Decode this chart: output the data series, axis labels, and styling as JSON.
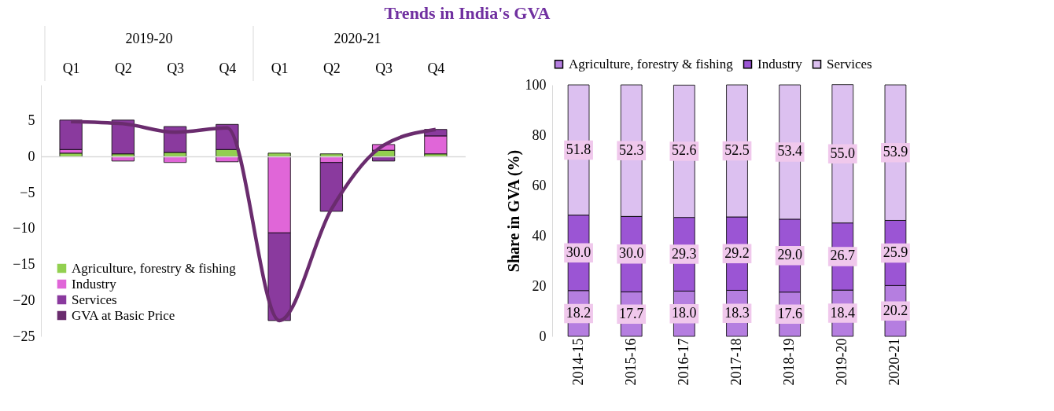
{
  "chart_data": [
    {
      "type": "bar",
      "title": "Trends in India's GVA",
      "categories": [
        "Q1",
        "Q2",
        "Q3",
        "Q4",
        "Q1",
        "Q2",
        "Q3",
        "Q4"
      ],
      "annotations": [
        "2019-20",
        "2020-21"
      ],
      "stacked": true,
      "ref_lines": [
        {
          "axis": "y",
          "value": 0,
          "color": "#d9d9d9"
        }
      ],
      "ylim": [
        -25,
        10
      ],
      "yticks": [
        -25,
        -20,
        -15,
        -10,
        -5,
        0,
        5
      ],
      "grid": false,
      "legend": "bottom left",
      "series": [
        {
          "name": "Agriculture, forestry & fishing",
          "color": "#92d050",
          "values": [
            0.5,
            0.4,
            0.6,
            1.0,
            0.5,
            0.4,
            0.9,
            0.4
          ]
        },
        {
          "name": "Industry",
          "color": "#e066d8",
          "values": [
            0.5,
            -0.6,
            -0.8,
            -0.7,
            -10.6,
            -0.8,
            0.8,
            2.5
          ]
        },
        {
          "name": "Services",
          "color": "#8a3a9e",
          "values": [
            4.1,
            4.7,
            3.6,
            3.5,
            -12.2,
            -6.8,
            -0.6,
            0.9
          ]
        },
        {
          "name": "GVA at Basic Price",
          "type": "line",
          "color": "#6a2c6e",
          "values": [
            4.9,
            4.6,
            3.4,
            4.0,
            -22.8,
            -7.3,
            1.6,
            3.8
          ]
        }
      ]
    },
    {
      "type": "bar",
      "categories": [
        "2014-15",
        "2015-16",
        "2016-17",
        "2017-18",
        "2018-19",
        "2019-20",
        "2020-21"
      ],
      "stacked": true,
      "ylabel": "Share in GVA (%)",
      "ylim": [
        0,
        100
      ],
      "yticks": [
        0,
        20,
        40,
        60,
        80,
        100
      ],
      "grid": false,
      "legend": "top",
      "series": [
        {
          "name": "Agriculture, forestry & fishing",
          "color": "#b57ee0",
          "values": [
            18.2,
            17.7,
            18.0,
            18.3,
            17.6,
            18.4,
            20.2
          ],
          "value_labels": [
            "18.2",
            "17.7",
            "18.0",
            "18.3",
            "17.6",
            "18.4",
            "20.2"
          ]
        },
        {
          "name": "Industry",
          "color": "#9b55d4",
          "values": [
            30.0,
            30.0,
            29.3,
            29.2,
            29.0,
            26.7,
            25.9
          ],
          "value_labels": [
            "30.0",
            "30.0",
            "29.3",
            "29.2",
            "29.0",
            "26.7",
            "25.9"
          ]
        },
        {
          "name": "Services",
          "color": "#dcc0f0",
          "values": [
            51.8,
            52.3,
            52.6,
            52.5,
            53.4,
            55.0,
            53.9
          ],
          "value_labels": [
            "51.8",
            "52.3",
            "52.6",
            "52.5",
            "53.4",
            "55.0",
            "53.9"
          ]
        }
      ]
    }
  ]
}
